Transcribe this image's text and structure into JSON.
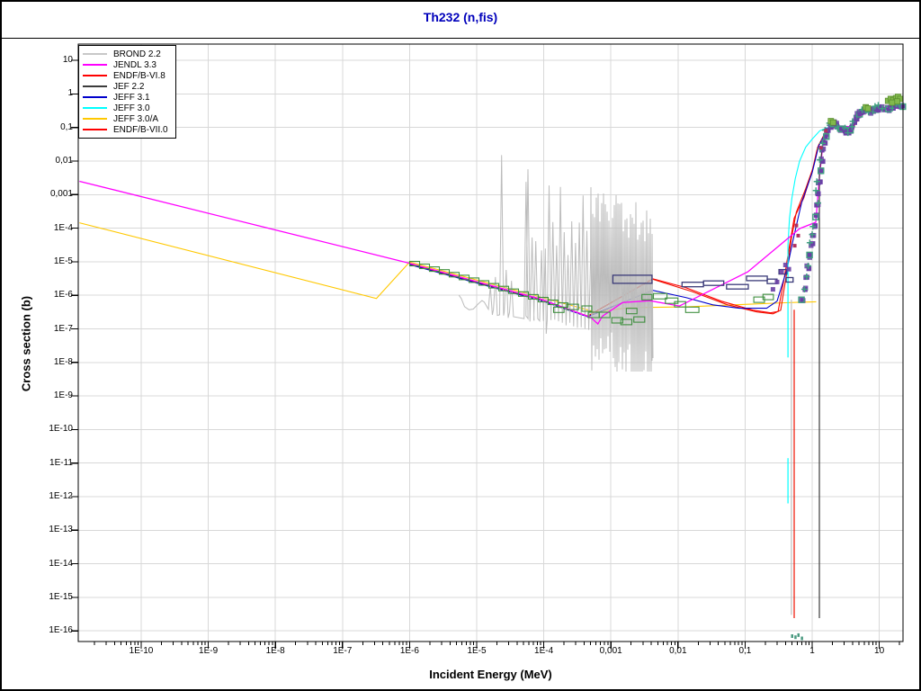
{
  "window": {
    "title": "Th232 (n,fis)",
    "title_color": "#0000bb"
  },
  "colors": {
    "grid": "#d8d8d8",
    "axis": "#000000",
    "background": "#ffffff"
  },
  "axes": {
    "x": {
      "label": "Incident Energy (MeV)",
      "ticks": [
        {
          "label": "1E-10",
          "v": 1e-10
        },
        {
          "label": "1E-9",
          "v": 1e-09
        },
        {
          "label": "1E-8",
          "v": 1e-08
        },
        {
          "label": "1E-7",
          "v": 1e-07
        },
        {
          "label": "1E-6",
          "v": 1e-06
        },
        {
          "label": "1E-5",
          "v": 1e-05
        },
        {
          "label": "1E-4",
          "v": 0.0001
        },
        {
          "label": "0,001",
          "v": 0.001
        },
        {
          "label": "0,01",
          "v": 0.01
        },
        {
          "label": "0,1",
          "v": 0.1
        },
        {
          "label": "1",
          "v": 1
        },
        {
          "label": "10",
          "v": 10
        }
      ],
      "range": [
        1.2e-11,
        24
      ]
    },
    "y": {
      "label": "Cross section (b)",
      "ticks": [
        {
          "label": "10",
          "v": 10
        },
        {
          "label": "1",
          "v": 1
        },
        {
          "label": "0,1",
          "v": 0.1
        },
        {
          "label": "0,01",
          "v": 0.01
        },
        {
          "label": "0,001",
          "v": 0.001
        },
        {
          "label": "1E-4",
          "v": 0.0001
        },
        {
          "label": "1E-5",
          "v": 1e-05
        },
        {
          "label": "1E-6",
          "v": 1e-06
        },
        {
          "label": "1E-7",
          "v": 1e-07
        },
        {
          "label": "1E-8",
          "v": 1e-08
        },
        {
          "label": "1E-9",
          "v": 1e-09
        },
        {
          "label": "1E-10",
          "v": 1e-10
        },
        {
          "label": "1E-11",
          "v": 1e-11
        },
        {
          "label": "1E-12",
          "v": 1e-12
        },
        {
          "label": "1E-13",
          "v": 1e-13
        },
        {
          "label": "1E-14",
          "v": 1e-14
        },
        {
          "label": "1E-15",
          "v": 1e-15
        },
        {
          "label": "1E-16",
          "v": 1e-16
        }
      ],
      "range": [
        1e-16,
        30
      ]
    }
  },
  "legend": {
    "entries": [
      {
        "label": "BROND 2.2",
        "color": "#c8c8c8"
      },
      {
        "label": "JENDL 3.3",
        "color": "#ff00ff"
      },
      {
        "label": "ENDF/B-VI.8",
        "color": "#ff0000"
      },
      {
        "label": "JEF 2.2",
        "color": "#3c3c3c"
      },
      {
        "label": "JEFF 3.1",
        "color": "#0000cc"
      },
      {
        "label": "JEFF 3.0",
        "color": "#00ffff"
      },
      {
        "label": "JEFF 3.0/A",
        "color": "#ffc800"
      },
      {
        "label": "ENDF/B-VII.0",
        "color": "#ff0000"
      }
    ]
  },
  "chart_data": {
    "type": "line",
    "xscale": "log",
    "yscale": "log",
    "title": "Th232 (n,fis)",
    "xlabel": "Incident Energy (MeV)",
    "ylabel": "Cross section (b)",
    "xlim": [
      1.2e-11,
      24
    ],
    "ylim": [
      1e-16,
      30
    ],
    "grid": "on",
    "legend_position": "top-left",
    "series": [
      {
        "name": "JEFF 3.0/A",
        "color": "#ffc800",
        "points": [
          [
            1.2e-11,
            0.000145
          ],
          [
            3.2e-07,
            8e-07
          ],
          [
            1e-06,
            9.8e-06
          ],
          [
            9e-05,
            8.8e-07
          ],
          [
            0.00058,
            3.2e-07
          ],
          [
            0.0019,
            4.3e-07
          ],
          [
            0.013,
            4.5e-07
          ],
          [
            0.11,
            5.4e-07
          ],
          [
            0.39,
            6e-07
          ],
          [
            1.15,
            6.4e-07
          ]
        ]
      },
      {
        "name": "ENDF/B-VI.8",
        "color": "#ff0000",
        "points": [
          [
            1e-06,
            8.6e-06
          ],
          [
            9e-05,
            7.4e-07
          ],
          [
            0.00045,
            2.4e-07
          ],
          [
            0.0042,
            3.1e-06
          ],
          [
            0.013,
            1.7e-06
          ],
          [
            0.044,
            6.7e-07
          ],
          [
            0.13,
            3.6e-07
          ],
          [
            0.24,
            3e-07
          ],
          [
            0.31,
            3.3e-07
          ],
          [
            0.39,
            4e-06
          ],
          [
            0.46,
            3e-05
          ],
          [
            0.54,
            0.0002
          ],
          [
            0.75,
            0.0008
          ],
          [
            1.0,
            0.005
          ],
          [
            1.2,
            0.025
          ],
          [
            1.5,
            0.06
          ],
          [
            1.9,
            0.095
          ],
          [
            3.0,
            0.105
          ],
          [
            4.2,
            0.11
          ],
          [
            5.2,
            0.21
          ],
          [
            7.0,
            0.34
          ],
          [
            22,
            0.39
          ]
        ]
      },
      {
        "name": "ENDF/B-VII.0",
        "color": "#ee1100",
        "points": [
          [
            1e-06,
            8.6e-06
          ],
          [
            9e-05,
            7.4e-07
          ],
          [
            0.00045,
            2.4e-07
          ],
          [
            0.0042,
            3e-06
          ],
          [
            0.016,
            1.3e-06
          ],
          [
            0.055,
            5.2e-07
          ],
          [
            0.15,
            3.2e-07
          ],
          [
            0.26,
            2.8e-07
          ],
          [
            0.34,
            3.6e-07
          ],
          [
            0.42,
            5e-06
          ],
          [
            0.49,
            5e-05
          ],
          [
            0.58,
            0.0003
          ],
          [
            0.8,
            0.0015
          ],
          [
            1.05,
            0.007
          ],
          [
            1.25,
            0.03
          ],
          [
            1.55,
            0.065
          ],
          [
            2.0,
            0.1
          ]
        ]
      },
      {
        "name": "JEFF 3.1",
        "color": "#0000cc",
        "points": [
          [
            1e-06,
            8.2e-06
          ],
          [
            9e-05,
            7e-07
          ],
          [
            0.00045,
            2.3e-07
          ],
          [
            0.0042,
            1.4e-06
          ],
          [
            0.013,
            8.6e-07
          ],
          [
            0.033,
            5.2e-07
          ],
          [
            0.082,
            4.1e-07
          ],
          [
            0.21,
            4.1e-07
          ],
          [
            0.3,
            6.7e-07
          ],
          [
            0.42,
            5.9e-06
          ],
          [
            0.52,
            4.5e-05
          ],
          [
            0.7,
            0.0006
          ],
          [
            1.0,
            0.0045
          ],
          [
            1.25,
            0.028
          ],
          [
            1.6,
            0.07
          ],
          [
            2.0,
            0.1
          ],
          [
            3.0,
            0.105
          ]
        ]
      },
      {
        "name": "JEFF 3.0",
        "color": "#00ffff",
        "points": [
          [
            0.436,
            3.2e-05
          ],
          [
            0.46,
            0.0002
          ],
          [
            0.5,
            0.0008
          ],
          [
            0.56,
            0.003
          ],
          [
            0.65,
            0.01
          ],
          [
            0.8,
            0.026
          ],
          [
            1.0,
            0.045
          ],
          [
            1.3,
            0.08
          ],
          [
            1.7,
            0.1
          ]
        ]
      },
      {
        "name": "JENDL 3.3",
        "color": "#ff00ff",
        "points": [
          [
            1.2e-11,
            0.0025
          ],
          [
            1e-06,
            9e-06
          ],
          [
            9e-05,
            7.7e-07
          ],
          [
            0.0005,
            2.2e-07
          ],
          [
            0.00064,
            1.4e-07
          ],
          [
            0.00075,
            2.4e-07
          ],
          [
            0.0015,
            6.1e-07
          ],
          [
            0.0038,
            6.9e-07
          ],
          [
            0.0105,
            4.8e-07
          ],
          [
            0.11,
            5e-06
          ],
          [
            0.65,
            9.7e-05
          ],
          [
            1.13,
            0.00015
          ],
          [
            1.28,
            0.0033
          ],
          [
            1.45,
            0.032
          ],
          [
            1.8,
            0.098
          ],
          [
            2.5,
            0.11
          ],
          [
            4.0,
            0.105
          ],
          [
            5.0,
            0.2
          ],
          [
            6.5,
            0.33
          ],
          [
            20,
            0.38
          ]
        ]
      },
      {
        "name": "JEF 2.2",
        "color": "#3c3c3c",
        "points": [
          [
            1.28,
            0.0045
          ],
          [
            1.42,
            0.028
          ],
          [
            1.62,
            0.068
          ],
          [
            1.95,
            0.1
          ]
        ]
      }
    ],
    "verticals": [
      {
        "name": "JEFF 3.0",
        "color": "#00ffff",
        "E": 0.436,
        "s1": 1.4e-08,
        "s2": 3.2e-05
      },
      {
        "name": "JEFF 3.0",
        "color": "#00ffff",
        "E": 0.436,
        "s1": 6.3e-13,
        "s2": 1.4e-11
      },
      {
        "name": "BROND 2.2",
        "color": "#bfbfbf",
        "E": 0.49,
        "s1": 3e-16,
        "s2": 7.4e-07
      },
      {
        "name": "ENDF/B-VII.0",
        "color": "#ee1100",
        "E": 0.54,
        "s1": 2.4e-16,
        "s2": 3.7e-07
      },
      {
        "name": "JEF 2.2",
        "color": "#3c3c3c",
        "E": 1.28,
        "s1": 2.4e-16,
        "s2": 0.0045
      }
    ],
    "resonance": {
      "name": "BROND 2.2 resolved resonances",
      "color": "#bcbcbc",
      "seed": 9,
      "E_min": 1.3e-05,
      "E_max": 0.0042,
      "shoulder": [
        [
          5.45e-06,
          1e-06
        ],
        [
          5.9e-06,
          8e-07
        ],
        [
          6.6e-06,
          4.6e-07
        ],
        [
          7.7e-06,
          3.7e-07
        ],
        [
          8.9e-06,
          3.9e-07
        ],
        [
          1.05e-05,
          5.5e-07
        ],
        [
          1.2e-05,
          7e-07
        ],
        [
          1.3e-05,
          6.2e-07
        ]
      ],
      "zoneA_peaks": [
        [
          1.6e-05,
          1.9e-06
        ],
        [
          1.9e-05,
          3.5e-06
        ],
        [
          2.35e-05,
          0.015
        ],
        [
          2.75e-05,
          5.7e-06
        ],
        [
          3.3e-05,
          2.7e-06
        ],
        [
          5.45e-05,
          0.0024
        ],
        [
          5.8e-05,
          0.0057
        ],
        [
          6.7e-05,
          5.3e-05
        ],
        [
          7.6e-05,
          4.1e-05
        ]
      ]
    },
    "markers": {
      "colors": {
        "green": "#3f8f3f",
        "navy": "#3a3a78",
        "purple": "#6a3fa5",
        "teal": "#3f9f80",
        "lightgreen": "#82b84c",
        "crimson": "#b03060",
        "speck": "#4a9a80"
      },
      "staircase": {
        "count": 16,
        "E0": 1.19e-06,
        "s0": 8.8e-06,
        "E_ratio": 1.404,
        "s_ratio": 0.827
      },
      "green_boxes": [
        [
          0.00014,
          0.0002,
          3.7e-07
        ],
        [
          0.00022,
          0.00033,
          4.5e-07
        ],
        [
          0.00037,
          0.00052,
          4e-07
        ],
        [
          0.00046,
          0.00067,
          2.6e-07
        ],
        [
          0.00067,
          0.00097,
          2.6e-07
        ],
        [
          0.00103,
          0.0015,
          1.8e-07
        ],
        [
          0.0014,
          0.00205,
          1.6e-07
        ],
        [
          0.0017,
          0.00245,
          3.4e-07
        ],
        [
          0.0022,
          0.0032,
          1.9e-07
        ],
        [
          0.0029,
          0.0041,
          8.8e-07
        ],
        [
          0.0043,
          0.00685,
          9.4e-07
        ],
        [
          0.0065,
          0.01,
          6.9e-07
        ],
        [
          0.0089,
          0.013,
          5.4e-07
        ],
        [
          0.013,
          0.0205,
          3.7e-07
        ],
        [
          0.135,
          0.195,
          7.4e-07
        ],
        [
          0.185,
          0.265,
          8.9e-07
        ]
      ],
      "navy_bars": [
        [
          0.00107,
          0.0041,
          3e-06
        ],
        [
          0.0115,
          0.024,
          2.1e-06
        ],
        [
          0.024,
          0.048,
          2.3e-06
        ],
        [
          0.053,
          0.112,
          1.8e-06
        ],
        [
          0.105,
          0.214,
          3.2e-06
        ],
        [
          0.214,
          0.3,
          2.6e-06
        ],
        [
          0.32,
          0.42,
          5e-06
        ],
        [
          0.41,
          0.52,
          2.9e-06
        ]
      ],
      "cluster": [
        [
          0.69,
          7.9e-07
        ],
        [
          0.74,
          1.6e-06
        ],
        [
          0.79,
          3.4e-06
        ],
        [
          0.84,
          7e-06
        ],
        [
          0.9,
          1.6e-05
        ],
        [
          0.95,
          3.6e-05
        ],
        [
          1.0,
          7e-05
        ],
        [
          1.05,
          0.00012
        ],
        [
          1.1,
          0.00024
        ],
        [
          1.15,
          0.0005
        ],
        [
          1.2,
          0.0012
        ],
        [
          1.24,
          0.0026
        ],
        [
          1.28,
          0.0055
        ],
        [
          1.33,
          0.011
        ],
        [
          1.39,
          0.022
        ],
        [
          1.46,
          0.038
        ],
        [
          1.55,
          0.06
        ],
        [
          1.65,
          0.082
        ],
        [
          1.77,
          0.105
        ],
        [
          1.9,
          0.13
        ],
        [
          2.04,
          0.145
        ],
        [
          2.19,
          0.125
        ],
        [
          2.35,
          0.105
        ],
        [
          2.52,
          0.095
        ],
        [
          2.71,
          0.1
        ],
        [
          2.91,
          0.09
        ],
        [
          3.12,
          0.078
        ],
        [
          3.35,
          0.075
        ],
        [
          3.6,
          0.085
        ],
        [
          3.87,
          0.105
        ],
        [
          4.15,
          0.15
        ],
        [
          4.46,
          0.2
        ],
        [
          4.79,
          0.25
        ],
        [
          5.14,
          0.29
        ],
        [
          5.52,
          0.32
        ],
        [
          5.93,
          0.35
        ],
        [
          6.37,
          0.36
        ],
        [
          6.84,
          0.34
        ],
        [
          7.35,
          0.31
        ],
        [
          7.89,
          0.33
        ],
        [
          8.47,
          0.36
        ],
        [
          9.1,
          0.39
        ],
        [
          9.77,
          0.41
        ],
        [
          11.3,
          0.4
        ],
        [
          13.0,
          0.37
        ],
        [
          15.0,
          0.42
        ],
        [
          17.3,
          0.46
        ],
        [
          19.9,
          0.44
        ],
        [
          21.9,
          0.46
        ]
      ],
      "lightgreen": [
        [
          13.5,
          0.62
        ],
        [
          14.8,
          0.71
        ],
        [
          16.2,
          0.66
        ],
        [
          17.8,
          0.75
        ],
        [
          19.0,
          0.82
        ],
        [
          20.5,
          0.71
        ],
        [
          21.8,
          0.62
        ],
        [
          18.5,
          0.6
        ],
        [
          15.5,
          0.55
        ],
        [
          1.9,
          0.155
        ],
        [
          2.05,
          0.14
        ],
        [
          6.3,
          0.4
        ],
        [
          6.8,
          0.37
        ]
      ],
      "crimson": [
        [
          0.58,
          0.00012
        ],
        [
          0.62,
          6e-05
        ],
        [
          0.55,
          3e-05
        ],
        [
          1.35,
          0.025
        ],
        [
          1.6,
          0.08
        ],
        [
          2.1,
          0.13
        ]
      ],
      "purple_strays": [
        [
          0.35,
          5e-06
        ],
        [
          0.4,
          8e-06
        ],
        [
          0.45,
          6e-06
        ],
        [
          0.3,
          2.5e-06
        ],
        [
          0.26,
          1.5e-06
        ]
      ],
      "specks": [
        [
          0.5,
          7e-17
        ],
        [
          0.56,
          6.5e-17
        ],
        [
          0.62,
          7.5e-17
        ],
        [
          0.7,
          6e-17
        ]
      ]
    }
  }
}
